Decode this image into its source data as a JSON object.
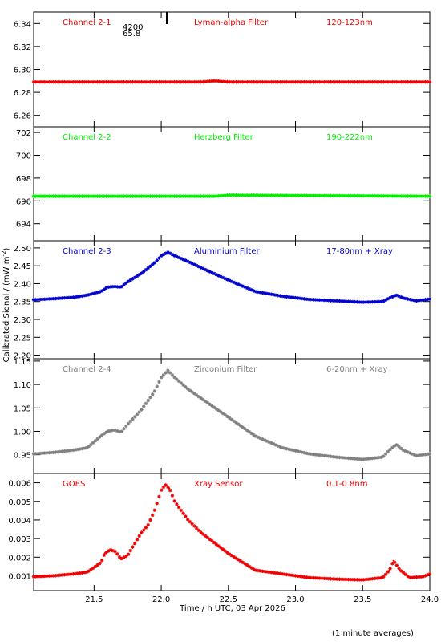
{
  "figure": {
    "ylabel_main": "Calibrated Signal / (mW m",
    "ylabel_sup": "-2",
    "ylabel_close": ")",
    "footnote": "(1 minute averages)",
    "marker_label_1": "4200",
    "marker_label_2": "65.8"
  },
  "chart_data": [
    {
      "type": "scatter",
      "panel": "channel-2-1",
      "labels": [
        "Channel 2-1",
        "Lyman-alpha Filter",
        "120-123nm"
      ],
      "color": "#ee0000",
      "ylim": [
        6.25,
        6.35
      ],
      "yticks": [
        6.26,
        6.28,
        6.3,
        6.32,
        6.34
      ],
      "ytick_labels": [
        "6.26",
        "6.28",
        "6.30",
        "6.32",
        "6.34"
      ],
      "series": [
        {
          "x": [
            21.05,
            22.3,
            22.4,
            22.5,
            24.0
          ],
          "y": [
            6.289,
            6.289,
            6.29,
            6.289,
            6.289
          ]
        }
      ]
    },
    {
      "type": "scatter",
      "panel": "channel-2-2",
      "labels": [
        "Channel 2-2",
        "Herzberg Filter",
        "190-222nm"
      ],
      "color": "#00ee00",
      "ylim": [
        692.5,
        702.5
      ],
      "yticks": [
        694,
        696,
        698,
        700,
        702
      ],
      "ytick_labels": [
        "694",
        "696",
        "698",
        "700",
        "702"
      ],
      "series": [
        {
          "x": [
            21.05,
            22.4,
            22.5,
            24.0
          ],
          "y": [
            696.4,
            696.4,
            696.5,
            696.4
          ]
        }
      ]
    },
    {
      "type": "scatter",
      "panel": "channel-2-3",
      "labels": [
        "Channel 2-3",
        "Aluminium Filter",
        "17-80nm + Xray"
      ],
      "color": "#0000cc",
      "ylim": [
        2.19,
        2.52
      ],
      "yticks": [
        2.2,
        2.25,
        2.3,
        2.35,
        2.4,
        2.45,
        2.5
      ],
      "ytick_labels": [
        "2.20",
        "2.25",
        "2.30",
        "2.35",
        "2.40",
        "2.45",
        "2.50"
      ],
      "series": [
        {
          "x": [
            21.05,
            21.2,
            21.35,
            21.45,
            21.55,
            21.6,
            21.65,
            21.7,
            21.75,
            21.85,
            21.95,
            22.0,
            22.05,
            22.1,
            22.2,
            22.3,
            22.5,
            22.7,
            22.9,
            23.1,
            23.3,
            23.5,
            23.65,
            23.7,
            23.75,
            23.8,
            23.9,
            24.0
          ],
          "y": [
            2.355,
            2.358,
            2.362,
            2.368,
            2.378,
            2.39,
            2.392,
            2.39,
            2.405,
            2.428,
            2.458,
            2.478,
            2.488,
            2.478,
            2.462,
            2.444,
            2.41,
            2.378,
            2.365,
            2.356,
            2.352,
            2.348,
            2.35,
            2.36,
            2.368,
            2.36,
            2.352,
            2.357
          ]
        }
      ]
    },
    {
      "type": "scatter",
      "panel": "channel-2-4",
      "labels": [
        "Channel 2-4",
        "Zirconium Filter",
        "6-20nm + Xray"
      ],
      "color": "#808080",
      "ylim": [
        0.91,
        1.155
      ],
      "yticks": [
        0.95,
        1.0,
        1.05,
        1.1,
        1.15
      ],
      "ytick_labels": [
        "0.95",
        "1.00",
        "1.05",
        "1.10",
        "1.15"
      ],
      "series": [
        {
          "x": [
            21.05,
            21.2,
            21.35,
            21.45,
            21.55,
            21.6,
            21.65,
            21.7,
            21.75,
            21.85,
            21.95,
            22.0,
            22.05,
            22.1,
            22.2,
            22.3,
            22.5,
            22.7,
            22.9,
            23.1,
            23.3,
            23.5,
            23.65,
            23.7,
            23.75,
            23.8,
            23.9,
            24.0
          ],
          "y": [
            0.952,
            0.955,
            0.96,
            0.965,
            0.99,
            1.0,
            1.003,
            0.998,
            1.015,
            1.045,
            1.085,
            1.115,
            1.13,
            1.115,
            1.09,
            1.07,
            1.03,
            0.99,
            0.965,
            0.952,
            0.945,
            0.94,
            0.945,
            0.96,
            0.972,
            0.96,
            0.948,
            0.952
          ]
        }
      ]
    },
    {
      "type": "scatter",
      "panel": "goes",
      "labels": [
        "GOES",
        "Xray Sensor",
        "0.1-0.8nm"
      ],
      "color": "#ee0000",
      "xlim": [
        21.05,
        24.0
      ],
      "xticks": [
        21.5,
        22.0,
        22.5,
        23.0,
        23.5,
        24.0
      ],
      "xtick_labels": [
        "21.5",
        "22.0",
        "22.5",
        "23.0",
        "23.5",
        "24.0"
      ],
      "xlabel": "Time / h UTC, 03 Apr 2026",
      "ylim": [
        0.0002,
        0.0065
      ],
      "yticks": [
        0.001,
        0.002,
        0.003,
        0.004,
        0.005,
        0.006
      ],
      "ytick_labels": [
        "0.001",
        "0.002",
        "0.003",
        "0.004",
        "0.005",
        "0.006"
      ],
      "series": [
        {
          "x": [
            21.05,
            21.2,
            21.35,
            21.45,
            21.55,
            21.58,
            21.62,
            21.66,
            21.7,
            21.75,
            21.8,
            21.85,
            21.9,
            21.95,
            22.0,
            22.03,
            22.06,
            22.1,
            22.2,
            22.3,
            22.5,
            22.7,
            22.8,
            22.9,
            23.1,
            23.3,
            23.5,
            23.65,
            23.7,
            23.73,
            23.78,
            23.85,
            23.95,
            24.0
          ],
          "y": [
            0.00095,
            0.001,
            0.0011,
            0.0012,
            0.0017,
            0.0022,
            0.0024,
            0.0023,
            0.0019,
            0.0021,
            0.0027,
            0.0033,
            0.0037,
            0.0045,
            0.0056,
            0.0059,
            0.0057,
            0.005,
            0.004,
            0.0033,
            0.0022,
            0.0013,
            0.0012,
            0.0011,
            0.0009,
            0.00082,
            0.00078,
            0.0009,
            0.0013,
            0.0018,
            0.0013,
            0.0009,
            0.00095,
            0.0011
          ]
        }
      ]
    }
  ]
}
